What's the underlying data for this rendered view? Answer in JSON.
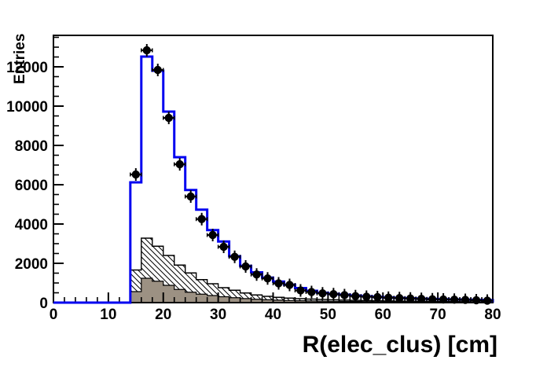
{
  "canvas": {
    "background": "#ffffff"
  },
  "chart_data": {
    "type": "bar",
    "subtype": "root-histogram-overlay",
    "title": "",
    "xlabel": "R(elec_clus) [cm]",
    "ylabel": "Entries",
    "xlim": [
      0,
      80
    ],
    "ylim": [
      0,
      13600
    ],
    "x_major_ticks": [
      0,
      10,
      20,
      30,
      40,
      50,
      60,
      70,
      80
    ],
    "x_minor_step": 2,
    "y_major_ticks": [
      0,
      2000,
      4000,
      6000,
      8000,
      10000,
      12000
    ],
    "y_minor_step": 500,
    "grid": false,
    "legend": "none",
    "bin_width": 2,
    "bin_start": 14,
    "bin_end": 80,
    "bin_centers": [
      15,
      17,
      19,
      21,
      23,
      25,
      27,
      29,
      31,
      33,
      35,
      37,
      39,
      41,
      43,
      45,
      47,
      49,
      51,
      53,
      55,
      57,
      59,
      61,
      63,
      65,
      67,
      69,
      71,
      73,
      75,
      77,
      79
    ],
    "series": [
      {
        "name": "data-points",
        "style": "black-filled-circle-markers-with-error-bars",
        "color": "#000000",
        "values": [
          6520,
          12840,
          11840,
          9400,
          7040,
          5400,
          4250,
          3440,
          2840,
          2330,
          1840,
          1430,
          1230,
          980,
          900,
          620,
          540,
          470,
          430,
          380,
          330,
          300,
          280,
          250,
          230,
          210,
          190,
          170,
          160,
          150,
          140,
          120,
          100
        ]
      },
      {
        "name": "total-histogram",
        "style": "step-outline",
        "color": "#0000f0",
        "values": [
          6120,
          12520,
          11800,
          9720,
          7400,
          5730,
          4730,
          3690,
          3110,
          2360,
          1870,
          1540,
          1270,
          1070,
          910,
          740,
          600,
          500,
          440,
          400,
          360,
          320,
          290,
          260,
          240,
          220,
          200,
          185,
          170,
          160,
          150,
          140,
          130
        ]
      },
      {
        "name": "background-hatched",
        "style": "diagonal-hatch-fill",
        "color": "#000000",
        "fill": "white-with-black-diagonal-hatch",
        "values": [
          1660,
          3280,
          2870,
          2400,
          1910,
          1510,
          1170,
          960,
          760,
          630,
          490,
          390,
          320,
          270,
          230,
          200,
          180,
          160,
          145,
          130,
          115,
          105,
          95,
          85,
          78,
          72,
          66,
          60,
          55,
          50,
          46,
          42,
          38
        ]
      },
      {
        "name": "background-gray",
        "style": "solid-fill",
        "color": "#9c9183",
        "values": [
          560,
          1240,
          1090,
          880,
          670,
          530,
          430,
          360,
          300,
          250,
          205,
          170,
          145,
          125,
          108,
          95,
          84,
          75,
          67,
          60,
          54,
          49,
          44,
          40,
          36,
          33,
          30,
          27,
          25,
          23,
          21,
          19,
          18
        ]
      }
    ]
  },
  "colors": {
    "frame": "#000000",
    "total_line": "#0000f0",
    "gray_fill": "#9c9183",
    "marker": "#000000",
    "background": "#ffffff"
  }
}
